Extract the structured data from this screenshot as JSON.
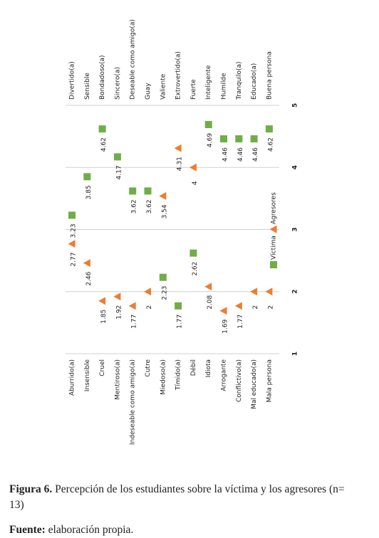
{
  "chart_data": {
    "type": "dot",
    "categories": [
      "Aburrido(a)",
      "Insensible",
      "Cruel",
      "Mentiroso(a)",
      "Indeseable como amigo(a)",
      "Cutre",
      "Miedoso(a)",
      "Tímido(a)",
      "Débil",
      "Idiota",
      "Arrogante",
      "Conflictivo(a)",
      "Mal educado(a)",
      "Mala persona"
    ],
    "opposite_categories": [
      "Divertido(a)",
      "Sensible",
      "Bondadoso(a)",
      "Sincero(a)",
      "Deseable como amigo(a)",
      "Guay",
      "Valiente",
      "Extrovertido(a)",
      "Fuerte",
      "Inteligente",
      "Humilde",
      "Tranquilo(a)",
      "Educado(a)",
      "Buena persona"
    ],
    "series": [
      {
        "name": "Víctima",
        "color": "#70ad47",
        "marker": "square",
        "values": [
          3.23,
          3.85,
          4.62,
          4.17,
          3.62,
          3.62,
          2.23,
          1.77,
          2.62,
          4.69,
          4.46,
          4.46,
          4.46,
          4.62
        ]
      },
      {
        "name": "Agresores",
        "color": "#ed7d31",
        "marker": "triangle",
        "values": [
          2.77,
          2.46,
          1.85,
          1.92,
          1.77,
          2,
          3.54,
          4.31,
          4,
          2.08,
          1.69,
          1.77,
          2,
          2
        ]
      }
    ],
    "xlim": [
      1,
      5
    ],
    "xticks": [
      1,
      2,
      3,
      4,
      5
    ],
    "grid": true
  },
  "caption": {
    "label": "Figura 6.",
    "text": "Percepción de los estudiantes sobre la víctima y los agresores (n= 13)"
  },
  "source": {
    "label": "Fuente:",
    "text": "elaboración propia."
  }
}
